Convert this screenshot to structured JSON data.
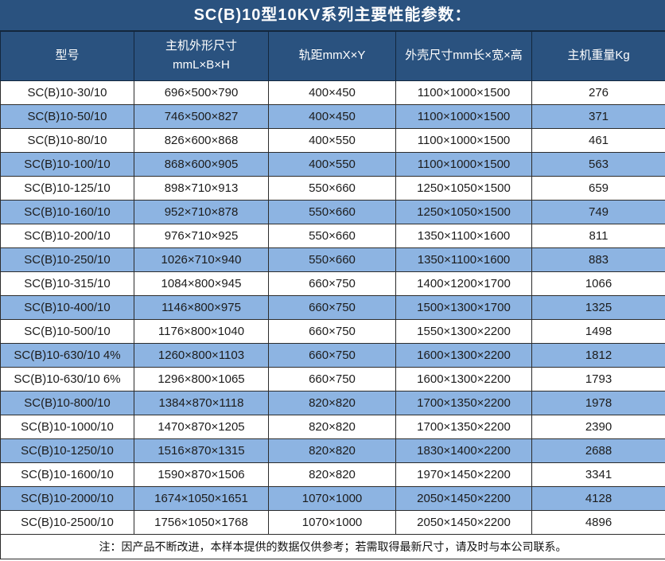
{
  "title": "SC(B)10型10KV系列主要性能参数：",
  "table": {
    "columns": [
      {
        "line1": "型号"
      },
      {
        "line1": "主机外形尺寸",
        "line2": "mmL×B×H"
      },
      {
        "line1": "轨距mmX×Y"
      },
      {
        "line1": "外壳尺寸mm长×宽×高"
      },
      {
        "line1": "主机重量Kg"
      }
    ],
    "rows": [
      [
        "SC(B)10-30/10",
        "696×500×790",
        "400×450",
        "1100×1000×1500",
        "276"
      ],
      [
        "SC(B)10-50/10",
        "746×500×827",
        "400×450",
        "1100×1000×1500",
        "371"
      ],
      [
        "SC(B)10-80/10",
        "826×600×868",
        "400×550",
        "1100×1000×1500",
        "461"
      ],
      [
        "SC(B)10-100/10",
        "868×600×905",
        "400×550",
        "1100×1000×1500",
        "563"
      ],
      [
        "SC(B)10-125/10",
        "898×710×913",
        "550×660",
        "1250×1050×1500",
        "659"
      ],
      [
        "SC(B)10-160/10",
        "952×710×878",
        "550×660",
        "1250×1050×1500",
        "749"
      ],
      [
        "SC(B)10-200/10",
        "976×710×925",
        "550×660",
        "1350×1100×1600",
        "811"
      ],
      [
        "SC(B)10-250/10",
        "1026×710×940",
        "550×660",
        "1350×1100×1600",
        "883"
      ],
      [
        "SC(B)10-315/10",
        "1084×800×945",
        "660×750",
        "1400×1200×1700",
        "1066"
      ],
      [
        "SC(B)10-400/10",
        "1146×800×975",
        "660×750",
        "1500×1300×1700",
        "1325"
      ],
      [
        "SC(B)10-500/10",
        "1176×800×1040",
        "660×750",
        "1550×1300×2200",
        "1498"
      ],
      [
        "SC(B)10-630/10 4%",
        "1260×800×1103",
        "660×750",
        "1600×1300×2200",
        "1812"
      ],
      [
        "SC(B)10-630/10 6%",
        "1296×800×1065",
        "660×750",
        "1600×1300×2200",
        "1793"
      ],
      [
        "SC(B)10-800/10",
        "1384×870×1118",
        "820×820",
        "1700×1350×2200",
        "1978"
      ],
      [
        "SC(B)10-1000/10",
        "1470×870×1205",
        "820×820",
        "1700×1350×2200",
        "2390"
      ],
      [
        "SC(B)10-1250/10",
        "1516×870×1315",
        "820×820",
        "1830×1400×2200",
        "2688"
      ],
      [
        "SC(B)10-1600/10",
        "1590×870×1506",
        "820×820",
        "1970×1450×2200",
        "3341"
      ],
      [
        "SC(B)10-2000/10",
        "1674×1050×1651",
        "1070×1000",
        "2050×1450×2200",
        "4128"
      ],
      [
        "SC(B)10-2500/10",
        "1756×1050×1768",
        "1070×1000",
        "2050×1450×2200",
        "4896"
      ]
    ]
  },
  "footer": {
    "note": "注：因产品不断改进，本样本提供的数据仅供参考；若需取得最新尺寸，请及时与本公司联系。"
  },
  "colors": {
    "header_navy": "#2a527f",
    "row_alt_blue": "#8db4e2",
    "border_dark": "#13273d",
    "body_border": "#2c2c2c",
    "body_text": "#1c1c1c",
    "header_text": "#ffffff"
  }
}
